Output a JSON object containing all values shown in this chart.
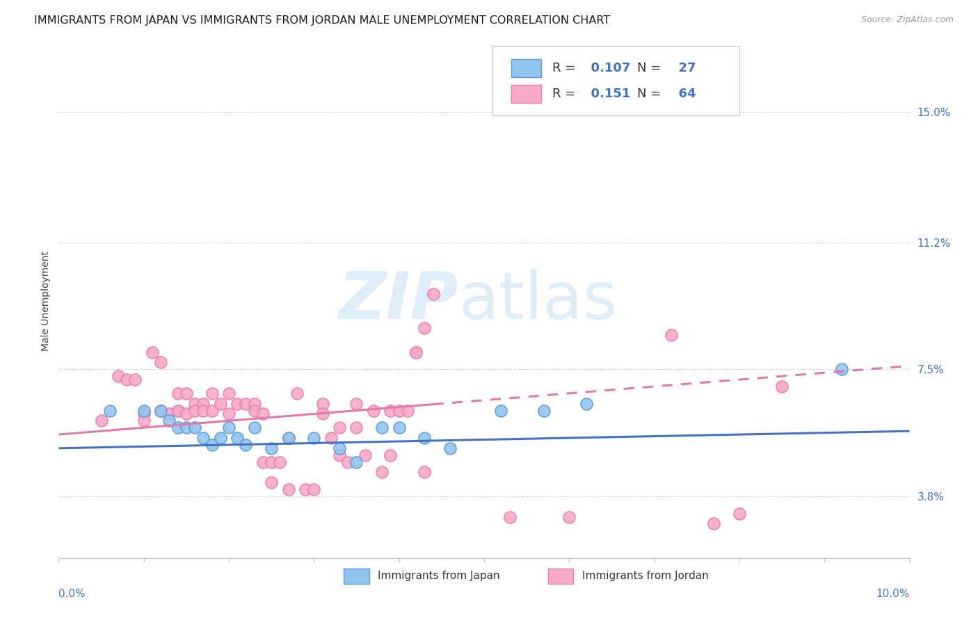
{
  "title": "IMMIGRANTS FROM JAPAN VS IMMIGRANTS FROM JORDAN MALE UNEMPLOYMENT CORRELATION CHART",
  "source": "Source: ZipAtlas.com",
  "ylabel": "Male Unemployment",
  "ytick_labels": [
    "3.8%",
    "7.5%",
    "11.2%",
    "15.0%"
  ],
  "ytick_values": [
    0.038,
    0.075,
    0.112,
    0.15
  ],
  "xmin": 0.0,
  "xmax": 0.1,
  "ymin": 0.02,
  "ymax": 0.17,
  "japan_R": 0.107,
  "japan_N": 27,
  "jordan_R": 0.151,
  "jordan_N": 64,
  "japan_color": "#92c5f0",
  "jordan_color": "#f8aac8",
  "japan_edge_color": "#5b9bd5",
  "jordan_edge_color": "#e87db0",
  "japan_line_color": "#4472c4",
  "jordan_line_color": "#e07aaa",
  "japan_scatter": [
    [
      0.006,
      0.063
    ],
    [
      0.01,
      0.063
    ],
    [
      0.012,
      0.063
    ],
    [
      0.013,
      0.06
    ],
    [
      0.014,
      0.058
    ],
    [
      0.015,
      0.058
    ],
    [
      0.016,
      0.058
    ],
    [
      0.017,
      0.055
    ],
    [
      0.018,
      0.053
    ],
    [
      0.019,
      0.055
    ],
    [
      0.02,
      0.058
    ],
    [
      0.021,
      0.055
    ],
    [
      0.022,
      0.053
    ],
    [
      0.023,
      0.058
    ],
    [
      0.025,
      0.052
    ],
    [
      0.027,
      0.055
    ],
    [
      0.03,
      0.055
    ],
    [
      0.033,
      0.052
    ],
    [
      0.035,
      0.048
    ],
    [
      0.038,
      0.058
    ],
    [
      0.04,
      0.058
    ],
    [
      0.043,
      0.055
    ],
    [
      0.046,
      0.052
    ],
    [
      0.052,
      0.063
    ],
    [
      0.057,
      0.063
    ],
    [
      0.062,
      0.065
    ],
    [
      0.092,
      0.075
    ]
  ],
  "jordan_scatter": [
    [
      0.005,
      0.06
    ],
    [
      0.007,
      0.073
    ],
    [
      0.008,
      0.072
    ],
    [
      0.009,
      0.072
    ],
    [
      0.01,
      0.062
    ],
    [
      0.01,
      0.06
    ],
    [
      0.011,
      0.08
    ],
    [
      0.012,
      0.077
    ],
    [
      0.012,
      0.063
    ],
    [
      0.013,
      0.062
    ],
    [
      0.014,
      0.068
    ],
    [
      0.014,
      0.063
    ],
    [
      0.014,
      0.063
    ],
    [
      0.015,
      0.068
    ],
    [
      0.015,
      0.062
    ],
    [
      0.016,
      0.065
    ],
    [
      0.016,
      0.063
    ],
    [
      0.017,
      0.065
    ],
    [
      0.017,
      0.063
    ],
    [
      0.018,
      0.068
    ],
    [
      0.018,
      0.063
    ],
    [
      0.019,
      0.065
    ],
    [
      0.02,
      0.068
    ],
    [
      0.02,
      0.062
    ],
    [
      0.021,
      0.065
    ],
    [
      0.022,
      0.065
    ],
    [
      0.023,
      0.065
    ],
    [
      0.023,
      0.063
    ],
    [
      0.024,
      0.062
    ],
    [
      0.024,
      0.048
    ],
    [
      0.025,
      0.048
    ],
    [
      0.025,
      0.042
    ],
    [
      0.026,
      0.048
    ],
    [
      0.027,
      0.055
    ],
    [
      0.027,
      0.04
    ],
    [
      0.028,
      0.068
    ],
    [
      0.029,
      0.04
    ],
    [
      0.03,
      0.04
    ],
    [
      0.031,
      0.065
    ],
    [
      0.031,
      0.062
    ],
    [
      0.032,
      0.055
    ],
    [
      0.033,
      0.058
    ],
    [
      0.033,
      0.05
    ],
    [
      0.034,
      0.048
    ],
    [
      0.035,
      0.065
    ],
    [
      0.035,
      0.058
    ],
    [
      0.036,
      0.05
    ],
    [
      0.037,
      0.063
    ],
    [
      0.038,
      0.045
    ],
    [
      0.039,
      0.063
    ],
    [
      0.039,
      0.05
    ],
    [
      0.04,
      0.063
    ],
    [
      0.041,
      0.063
    ],
    [
      0.043,
      0.045
    ],
    [
      0.042,
      0.08
    ],
    [
      0.042,
      0.08
    ],
    [
      0.043,
      0.087
    ],
    [
      0.044,
      0.097
    ],
    [
      0.053,
      0.032
    ],
    [
      0.06,
      0.032
    ],
    [
      0.072,
      0.085
    ],
    [
      0.077,
      0.03
    ],
    [
      0.08,
      0.033
    ],
    [
      0.085,
      0.07
    ]
  ],
  "jordan_line_solid_end_x": 0.044,
  "background_color": "#ffffff",
  "grid_color": "#d8d8d8",
  "title_fontsize": 11.5,
  "axis_label_fontsize": 10,
  "tick_fontsize": 11,
  "watermark_zip": "ZIP",
  "watermark_atlas": "atlas",
  "watermark_color_zip": "#ddeef8",
  "watermark_color_atlas": "#ddeef8",
  "watermark_fontsize": 68
}
